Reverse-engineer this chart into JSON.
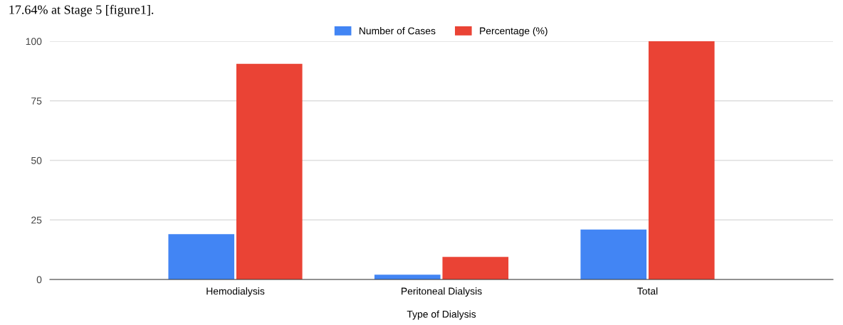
{
  "chart_data": {
    "type": "bar",
    "xlabel": "Type of Dialysis",
    "categories": [
      "Hemodialysis",
      "Peritoneal Dialysis",
      "Total"
    ],
    "series": [
      {
        "name": "Number of Cases",
        "color": "#4285f4",
        "values": [
          19,
          2,
          21
        ]
      },
      {
        "name": "Percentage (%)",
        "color": "#ea4335",
        "values": [
          90.5,
          9.5,
          100
        ]
      }
    ],
    "ylim": [
      0,
      100
    ],
    "yticks": [
      0,
      25,
      50,
      75,
      100
    ],
    "grid": "y",
    "legend": "top",
    "annotations": [
      "17.64% at Stage 5 [figure1]."
    ]
  }
}
